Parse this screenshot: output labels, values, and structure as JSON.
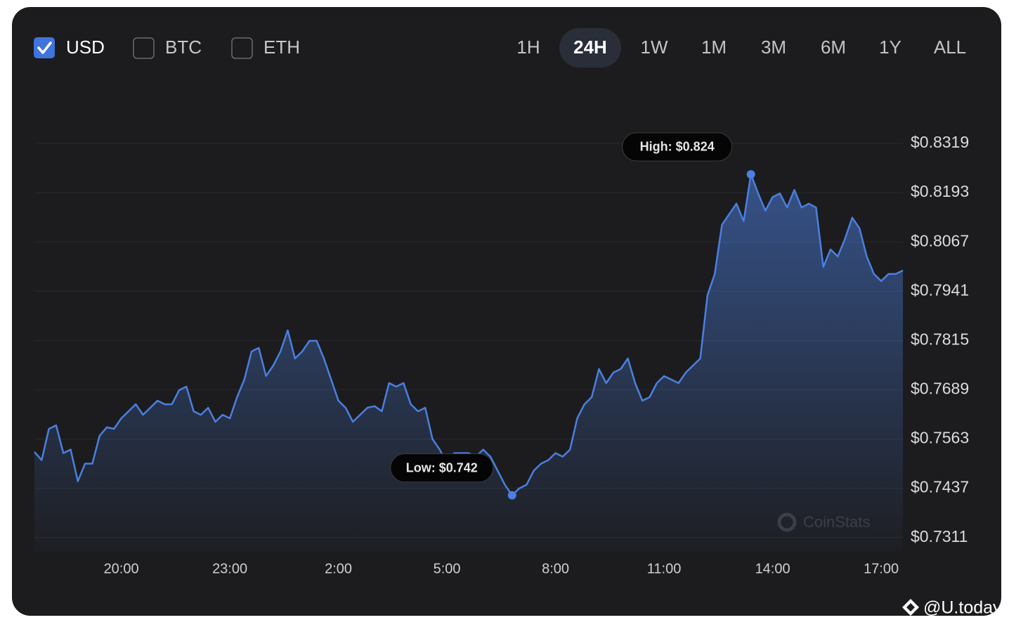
{
  "controls": {
    "currencies": [
      {
        "label": "USD",
        "checked": true
      },
      {
        "label": "BTC",
        "checked": false
      },
      {
        "label": "ETH",
        "checked": false
      }
    ],
    "ranges": [
      "1H",
      "24H",
      "1W",
      "1M",
      "3M",
      "6M",
      "1Y",
      "ALL"
    ],
    "selected_range": 1
  },
  "watermarks": {
    "source": "CoinStats",
    "credit": "@U.today"
  },
  "chart_data": {
    "type": "area",
    "categories": [
      null,
      null,
      null,
      null,
      null,
      null,
      null,
      null,
      null,
      null,
      null,
      null,
      "20:00",
      null,
      null,
      null,
      null,
      null,
      null,
      null,
      null,
      null,
      null,
      null,
      null,
      null,
      null,
      "23:00",
      null,
      null,
      null,
      null,
      null,
      null,
      null,
      null,
      null,
      null,
      null,
      null,
      null,
      null,
      "2:00",
      null,
      null,
      null,
      null,
      null,
      null,
      null,
      null,
      null,
      null,
      null,
      null,
      null,
      null,
      "5:00",
      null,
      null,
      null,
      null,
      null,
      null,
      null,
      null,
      null,
      null,
      null,
      null,
      null,
      null,
      "8:00",
      null,
      null,
      null,
      null,
      null,
      null,
      null,
      null,
      null,
      null,
      null,
      null,
      null,
      null,
      "11:00",
      null,
      null,
      null,
      null,
      null,
      null,
      null,
      null,
      null,
      null,
      null,
      null,
      null,
      null,
      "14:00",
      null,
      null,
      null,
      null,
      null,
      null,
      null,
      null,
      null,
      null,
      null,
      null,
      null,
      null,
      "17:00",
      null,
      null,
      null
    ],
    "series": [
      {
        "name": "USD",
        "color": "#4b7fe0",
        "values": [
          0.753,
          0.7509,
          0.7589,
          0.7598,
          0.7527,
          0.7536,
          0.7455,
          0.75,
          0.75,
          0.7571,
          0.7593,
          0.7589,
          0.7616,
          0.7634,
          0.7652,
          0.7625,
          0.7643,
          0.7661,
          0.7652,
          0.7652,
          0.7688,
          0.7697,
          0.7634,
          0.7625,
          0.7643,
          0.7607,
          0.7625,
          0.7616,
          0.767,
          0.7715,
          0.7787,
          0.7796,
          0.7724,
          0.7751,
          0.7787,
          0.7841,
          0.7769,
          0.7787,
          0.7814,
          0.7814,
          0.7769,
          0.7715,
          0.7661,
          0.7643,
          0.7607,
          0.7625,
          0.7643,
          0.7647,
          0.7634,
          0.7706,
          0.7697,
          0.7706,
          0.7652,
          0.7634,
          0.7643,
          0.7563,
          0.7536,
          0.75,
          0.7527,
          0.7527,
          0.7527,
          0.7518,
          0.7536,
          0.7518,
          0.7482,
          0.7446,
          0.7419,
          0.7437,
          0.7446,
          0.7482,
          0.75,
          0.7509,
          0.7527,
          0.7518,
          0.7536,
          0.7616,
          0.7652,
          0.767,
          0.7742,
          0.7706,
          0.7733,
          0.7742,
          0.7769,
          0.7706,
          0.7661,
          0.767,
          0.7706,
          0.7724,
          0.7715,
          0.7706,
          0.7733,
          0.7751,
          0.7769,
          0.7931,
          0.7985,
          0.8111,
          0.8138,
          0.8165,
          0.812,
          0.824,
          0.8191,
          0.8147,
          0.8182,
          0.8191,
          0.8155,
          0.82,
          0.8155,
          0.8165,
          0.8155,
          0.8003,
          0.8048,
          0.803,
          0.8075,
          0.8129,
          0.8102,
          0.803,
          0.7985,
          0.7967,
          0.7985,
          0.7985,
          0.7994
        ]
      }
    ],
    "ylim": [
      0.7271,
      0.8319
    ],
    "yticks": [
      {
        "value": 0.8319,
        "label": "$0.8319"
      },
      {
        "value": 0.8193,
        "label": "$0.8193"
      },
      {
        "value": 0.8067,
        "label": "$0.8067"
      },
      {
        "value": 0.7941,
        "label": "$0.7941"
      },
      {
        "value": 0.7815,
        "label": "$0.7815"
      },
      {
        "value": 0.7689,
        "label": "$0.7689"
      },
      {
        "value": 0.7563,
        "label": "$0.7563"
      },
      {
        "value": 0.7437,
        "label": "$0.7437"
      },
      {
        "value": 0.7311,
        "label": "$0.7311"
      }
    ],
    "grid": true,
    "annotations": [
      {
        "index": 99,
        "text": "High: $0.824"
      },
      {
        "index": 66,
        "text": "Low: $0.742"
      }
    ]
  }
}
